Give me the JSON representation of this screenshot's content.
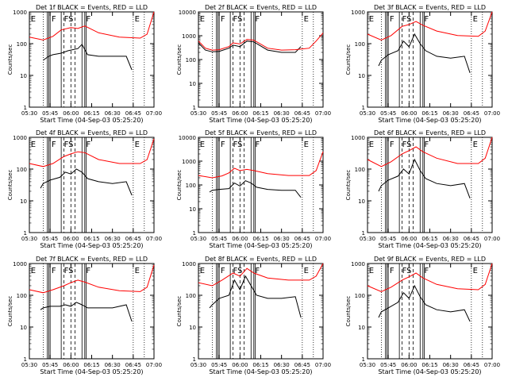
{
  "chart_data": [
    {
      "type": "line",
      "title": "Det 1f BLACK = Events, RED = LLD",
      "xlabel": "Start Time (04-Sep-03 05:25:20)",
      "ylabel": "Counts/sec",
      "yscale": "log",
      "ylim": [
        1,
        1000
      ],
      "ytick_labels": [
        "1",
        "10",
        "100",
        "1000"
      ],
      "xlim": [
        "05:30",
        "07:00"
      ],
      "xtick_labels": [
        "05:30",
        "05:45",
        "06:00",
        "06:15",
        "06:30",
        "06:45",
        "07:00"
      ],
      "interval_labels": [
        "E",
        "F",
        "FS",
        "F",
        "E"
      ],
      "series": [
        {
          "name": "Events",
          "color": "#000000",
          "x": [
            "05:40",
            "05:44",
            "05:47",
            "05:53",
            "05:58",
            "06:05",
            "06:08",
            "06:12",
            "06:20",
            "06:30",
            "06:40",
            "06:44"
          ],
          "values": [
            30,
            40,
            45,
            50,
            60,
            70,
            95,
            45,
            40,
            40,
            40,
            15
          ]
        },
        {
          "name": "LLD",
          "color": "#ff0000",
          "x": [
            "05:30",
            "05:40",
            "05:47",
            "05:53",
            "06:00",
            "06:05",
            "06:10",
            "06:20",
            "06:35",
            "06:50",
            "06:55",
            "07:00"
          ],
          "values": [
            160,
            130,
            170,
            270,
            320,
            300,
            360,
            220,
            160,
            150,
            200,
            1000
          ]
        }
      ]
    },
    {
      "type": "line",
      "title": "Det 2f BLACK = Events, RED = LLD",
      "xlabel": "Start Time (04-Sep-03 05:25:20)",
      "ylabel": "Counts/sec",
      "yscale": "log",
      "ylim": [
        1,
        10000
      ],
      "ytick_labels": [
        "1",
        "10",
        "100",
        "1000",
        "10000"
      ],
      "xlim": [
        "05:30",
        "07:00"
      ],
      "xtick_labels": [
        "05:30",
        "05:45",
        "06:00",
        "06:15",
        "06:30",
        "06:45",
        "07:00"
      ],
      "interval_labels": [
        "E",
        "F",
        "FS",
        "F",
        "E"
      ],
      "series": [
        {
          "name": "Events",
          "color": "#000000",
          "x": [
            "05:30",
            "05:35",
            "05:40",
            "05:45",
            "05:52",
            "05:55",
            "06:00",
            "06:05",
            "06:10",
            "06:20",
            "06:30",
            "06:40",
            "06:44"
          ],
          "values": [
            500,
            250,
            210,
            220,
            300,
            400,
            350,
            600,
            550,
            250,
            200,
            200,
            350
          ]
        },
        {
          "name": "LLD",
          "color": "#ff0000",
          "x": [
            "05:30",
            "05:35",
            "05:40",
            "05:45",
            "05:52",
            "05:55",
            "06:00",
            "06:05",
            "06:10",
            "06:20",
            "06:30",
            "06:40",
            "06:50",
            "06:55",
            "07:00"
          ],
          "values": [
            600,
            300,
            250,
            260,
            350,
            500,
            450,
            700,
            650,
            300,
            250,
            260,
            300,
            600,
            1300
          ]
        }
      ]
    },
    {
      "type": "line",
      "title": "Det 3f BLACK = Events, RED = LLD",
      "xlabel": "Start Time (04-Sep-03 05:25:20)",
      "ylabel": "Counts/sec",
      "yscale": "log",
      "ylim": [
        1,
        1000
      ],
      "ytick_labels": [
        "1",
        "10",
        "100",
        "1000"
      ],
      "xlim": [
        "05:30",
        "07:00"
      ],
      "xtick_labels": [
        "05:30",
        "05:45",
        "06:00",
        "06:15",
        "06:30",
        "06:45",
        "07:00"
      ],
      "interval_labels": [
        "E",
        "F",
        "FS",
        "F",
        "E"
      ],
      "series": [
        {
          "name": "Events",
          "color": "#000000",
          "x": [
            "05:38",
            "05:40",
            "05:45",
            "05:52",
            "05:56",
            "06:00",
            "06:04",
            "06:08",
            "06:12",
            "06:20",
            "06:30",
            "06:40",
            "06:44"
          ],
          "values": [
            20,
            30,
            45,
            60,
            120,
            80,
            200,
            100,
            60,
            40,
            35,
            40,
            12
          ]
        },
        {
          "name": "LLD",
          "color": "#ff0000",
          "x": [
            "05:30",
            "05:40",
            "05:47",
            "05:55",
            "06:00",
            "06:05",
            "06:10",
            "06:20",
            "06:35",
            "06:50",
            "06:55",
            "07:00"
          ],
          "values": [
            200,
            130,
            180,
            350,
            400,
            500,
            380,
            250,
            180,
            170,
            250,
            1000
          ]
        }
      ]
    },
    {
      "type": "line",
      "title": "Det 4f BLACK = Events, RED = LLD",
      "xlabel": "Start Time (04-Sep-03 05:25:20)",
      "ylabel": "Counts/sec",
      "yscale": "log",
      "ylim": [
        1,
        1000
      ],
      "ytick_labels": [
        "1",
        "10",
        "100",
        "1000"
      ],
      "xlim": [
        "05:30",
        "07:00"
      ],
      "xtick_labels": [
        "05:30",
        "05:45",
        "06:00",
        "06:15",
        "06:30",
        "06:45",
        "07:00"
      ],
      "interval_labels": [
        "E",
        "F",
        "FS",
        "F",
        "E"
      ],
      "series": [
        {
          "name": "Events",
          "color": "#000000",
          "x": [
            "05:38",
            "05:40",
            "05:45",
            "05:52",
            "05:56",
            "06:00",
            "06:04",
            "06:08",
            "06:12",
            "06:20",
            "06:30",
            "06:40",
            "06:44"
          ],
          "values": [
            25,
            35,
            45,
            55,
            80,
            70,
            100,
            80,
            50,
            40,
            35,
            40,
            15
          ]
        },
        {
          "name": "LLD",
          "color": "#ff0000",
          "x": [
            "05:30",
            "05:40",
            "05:47",
            "05:55",
            "06:00",
            "06:05",
            "06:10",
            "06:20",
            "06:35",
            "06:50",
            "06:55",
            "07:00"
          ],
          "values": [
            150,
            120,
            150,
            250,
            300,
            350,
            330,
            200,
            150,
            150,
            200,
            900
          ]
        }
      ]
    },
    {
      "type": "line",
      "title": "Det 5f BLACK = Events, RED = LLD",
      "xlabel": "Start Time (04-Sep-03 05:25:20)",
      "ylabel": "Counts/sec",
      "yscale": "log",
      "ylim": [
        1,
        10000
      ],
      "ytick_labels": [
        "1",
        "10",
        "100",
        "1000",
        "10000"
      ],
      "xlim": [
        "05:30",
        "07:00"
      ],
      "xtick_labels": [
        "05:30",
        "05:45",
        "06:00",
        "06:15",
        "06:30",
        "06:45",
        "07:00"
      ],
      "interval_labels": [
        "E",
        "F",
        "FS",
        "F",
        "E"
      ],
      "series": [
        {
          "name": "Events",
          "color": "#000000",
          "x": [
            "05:38",
            "05:40",
            "05:45",
            "05:52",
            "05:56",
            "06:00",
            "06:04",
            "06:08",
            "06:12",
            "06:20",
            "06:30",
            "06:40",
            "06:44"
          ],
          "values": [
            50,
            60,
            65,
            70,
            120,
            90,
            150,
            120,
            80,
            65,
            60,
            60,
            30
          ]
        },
        {
          "name": "LLD",
          "color": "#ff0000",
          "x": [
            "05:30",
            "05:40",
            "05:47",
            "05:52",
            "05:56",
            "06:00",
            "06:05",
            "06:10",
            "06:20",
            "06:35",
            "06:50",
            "06:55",
            "07:00"
          ],
          "values": [
            250,
            200,
            240,
            320,
            500,
            400,
            450,
            400,
            300,
            250,
            250,
            400,
            2500
          ]
        }
      ]
    },
    {
      "type": "line",
      "title": "Det 6f BLACK = Events, RED = LLD",
      "xlabel": "Start Time (04-Sep-03 05:25:20)",
      "ylabel": "Counts/sec",
      "yscale": "log",
      "ylim": [
        1,
        1000
      ],
      "ytick_labels": [
        "1",
        "10",
        "100",
        "1000"
      ],
      "xlim": [
        "05:30",
        "07:00"
      ],
      "xtick_labels": [
        "05:30",
        "05:45",
        "06:00",
        "06:15",
        "06:30",
        "06:45",
        "07:00"
      ],
      "interval_labels": [
        "E",
        "F",
        "FS",
        "F",
        "E"
      ],
      "series": [
        {
          "name": "Events",
          "color": "#000000",
          "x": [
            "05:38",
            "05:40",
            "05:45",
            "05:52",
            "05:56",
            "06:00",
            "06:04",
            "06:08",
            "06:12",
            "06:20",
            "06:30",
            "06:40",
            "06:44"
          ],
          "values": [
            20,
            30,
            45,
            60,
            100,
            70,
            200,
            90,
            50,
            35,
            30,
            35,
            12
          ]
        },
        {
          "name": "LLD",
          "color": "#ff0000",
          "x": [
            "05:30",
            "05:40",
            "05:47",
            "05:55",
            "06:00",
            "06:05",
            "06:10",
            "06:20",
            "06:35",
            "06:50",
            "06:55",
            "07:00"
          ],
          "values": [
            200,
            120,
            170,
            300,
            380,
            500,
            350,
            220,
            150,
            150,
            220,
            1000
          ]
        }
      ]
    },
    {
      "type": "line",
      "title": "Det 7f BLACK = Events, RED = LLD",
      "xlabel": "Start Time (04-Sep-03 05:25:20)",
      "ylabel": "Counts/sec",
      "yscale": "log",
      "ylim": [
        1,
        1000
      ],
      "ytick_labels": [
        "1",
        "10",
        "100",
        "1000"
      ],
      "xlim": [
        "05:30",
        "07:00"
      ],
      "xtick_labels": [
        "05:30",
        "05:45",
        "06:00",
        "06:15",
        "06:30",
        "06:45",
        "07:00"
      ],
      "interval_labels": [
        "E",
        "F",
        "FS",
        "F",
        "E"
      ],
      "series": [
        {
          "name": "Events",
          "color": "#000000",
          "x": [
            "05:38",
            "05:40",
            "05:45",
            "05:52",
            "05:56",
            "06:00",
            "06:04",
            "06:08",
            "06:12",
            "06:20",
            "06:30",
            "06:40",
            "06:44"
          ],
          "values": [
            35,
            40,
            45,
            45,
            50,
            45,
            60,
            50,
            40,
            40,
            40,
            50,
            15
          ]
        },
        {
          "name": "LLD",
          "color": "#ff0000",
          "x": [
            "05:30",
            "05:40",
            "05:47",
            "05:55",
            "06:00",
            "06:05",
            "06:10",
            "06:20",
            "06:35",
            "06:50",
            "06:55",
            "07:00"
          ],
          "values": [
            150,
            120,
            150,
            200,
            250,
            300,
            260,
            180,
            140,
            130,
            180,
            900
          ]
        }
      ]
    },
    {
      "type": "line",
      "title": "Det 8f BLACK = Events, RED = LLD",
      "xlabel": "Start Time (04-Sep-03 05:25:20)",
      "ylabel": "Counts/sec",
      "yscale": "log",
      "ylim": [
        1,
        1000
      ],
      "ytick_labels": [
        "1",
        "10",
        "100",
        "1000"
      ],
      "xlim": [
        "05:30",
        "07:00"
      ],
      "xtick_labels": [
        "05:30",
        "05:45",
        "06:00",
        "06:15",
        "06:30",
        "06:45",
        "07:00"
      ],
      "interval_labels": [
        "E",
        "F",
        "FS",
        "F",
        "E"
      ],
      "series": [
        {
          "name": "Events",
          "color": "#000000",
          "x": [
            "05:38",
            "05:40",
            "05:45",
            "05:52",
            "05:56",
            "06:00",
            "06:04",
            "06:08",
            "06:12",
            "06:20",
            "06:30",
            "06:40",
            "06:44"
          ],
          "values": [
            40,
            50,
            80,
            100,
            300,
            150,
            400,
            200,
            100,
            80,
            80,
            90,
            20
          ]
        },
        {
          "name": "LLD",
          "color": "#ff0000",
          "x": [
            "05:30",
            "05:40",
            "05:47",
            "05:55",
            "06:00",
            "06:05",
            "06:10",
            "06:20",
            "06:35",
            "06:50",
            "06:55",
            "07:00"
          ],
          "values": [
            250,
            200,
            300,
            500,
            400,
            700,
            500,
            350,
            300,
            300,
            400,
            1000
          ]
        }
      ]
    },
    {
      "type": "line",
      "title": "Det 9f BLACK = Events, RED = LLD",
      "xlabel": "Start Time (04-Sep-03 05:25:20)",
      "ylabel": "Counts/sec",
      "yscale": "log",
      "ylim": [
        1,
        1000
      ],
      "ytick_labels": [
        "1",
        "10",
        "100",
        "1000"
      ],
      "xlim": [
        "05:30",
        "07:00"
      ],
      "xtick_labels": [
        "05:30",
        "05:45",
        "06:00",
        "06:15",
        "06:30",
        "06:45",
        "07:00"
      ],
      "interval_labels": [
        "E",
        "F",
        "FS",
        "F",
        "E"
      ],
      "series": [
        {
          "name": "Events",
          "color": "#000000",
          "x": [
            "05:38",
            "05:40",
            "05:45",
            "05:52",
            "05:56",
            "06:00",
            "06:04",
            "06:08",
            "06:12",
            "06:20",
            "06:30",
            "06:40",
            "06:44"
          ],
          "values": [
            20,
            30,
            40,
            60,
            120,
            80,
            200,
            90,
            50,
            35,
            30,
            35,
            15
          ]
        },
        {
          "name": "LLD",
          "color": "#ff0000",
          "x": [
            "05:30",
            "05:40",
            "05:47",
            "05:55",
            "06:00",
            "06:05",
            "06:10",
            "06:20",
            "06:35",
            "06:50",
            "06:55",
            "07:00"
          ],
          "values": [
            200,
            130,
            180,
            300,
            380,
            500,
            350,
            220,
            160,
            150,
            220,
            1000
          ]
        }
      ]
    }
  ]
}
